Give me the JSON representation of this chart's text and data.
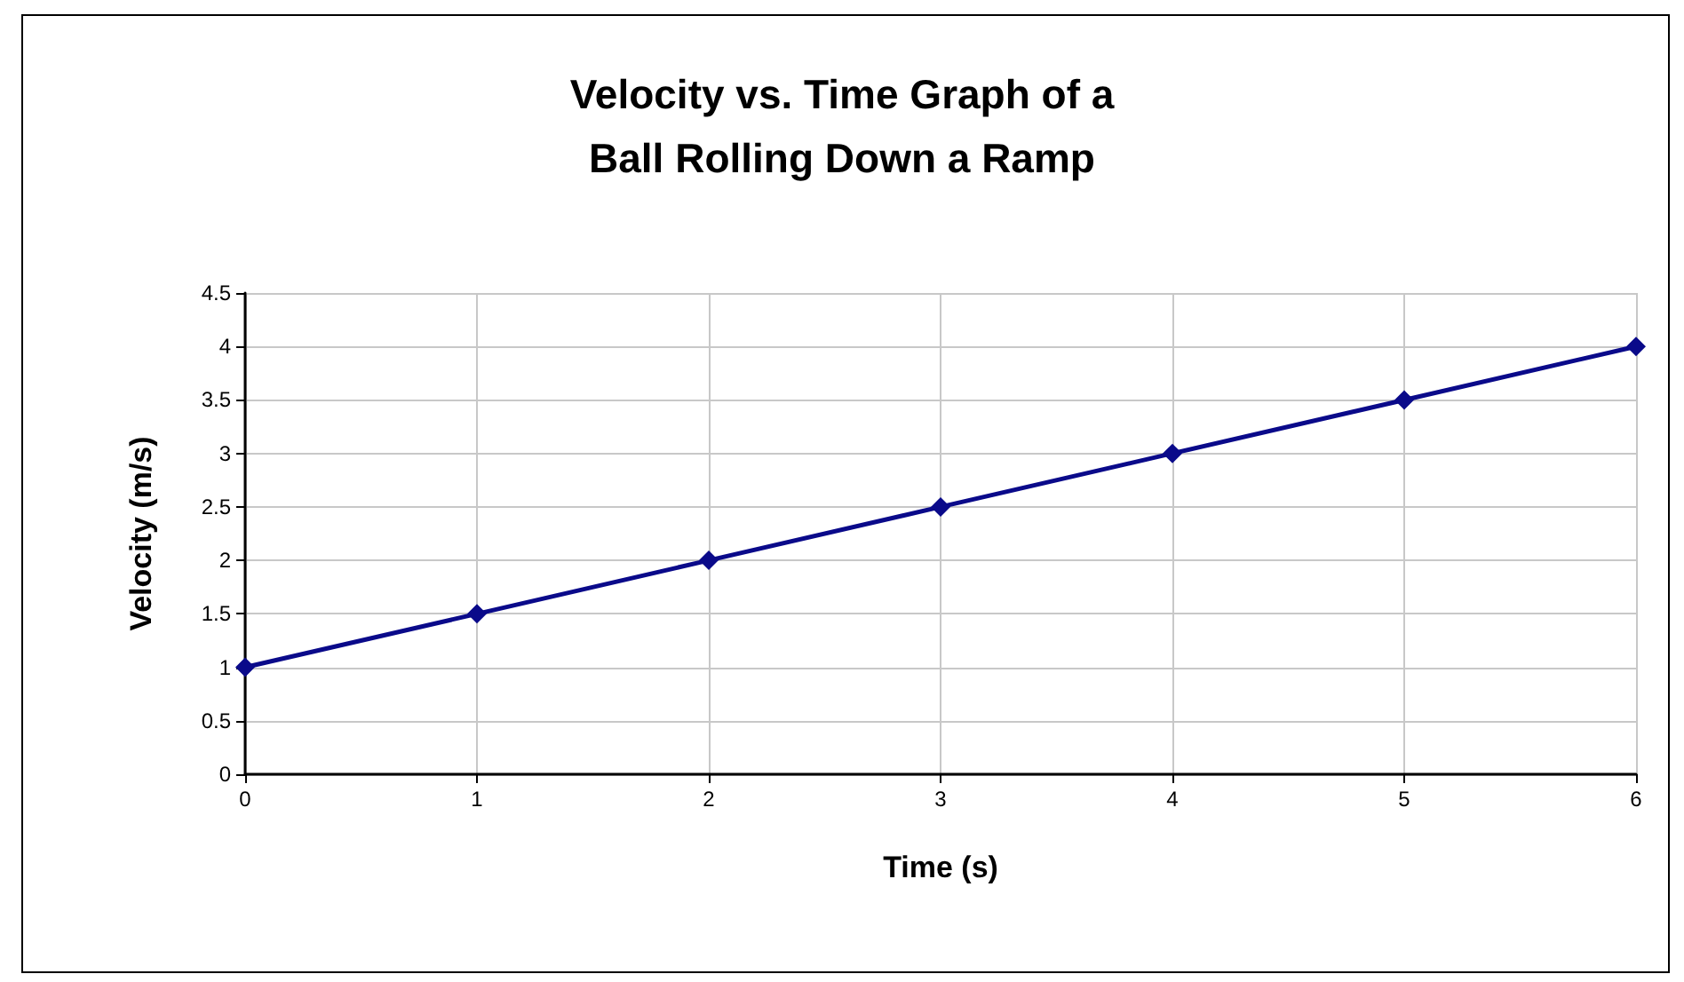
{
  "chart_data": {
    "type": "line",
    "title": "Velocity vs. Time Graph of a\nBall Rolling Down a Ramp",
    "xlabel": "Time (s)",
    "ylabel": "Velocity (m/s)",
    "x": [
      0,
      1,
      2,
      3,
      4,
      5,
      6
    ],
    "series": [
      {
        "color": "#0a0a8a",
        "values": [
          1,
          1.5,
          2,
          2.5,
          3,
          3.5,
          4
        ]
      }
    ],
    "xlim": [
      0,
      6
    ],
    "xticks": [
      0,
      1,
      2,
      3,
      4,
      5,
      6
    ],
    "ylim": [
      0,
      4.5
    ],
    "yticks": [
      0,
      0.5,
      1,
      1.5,
      2,
      2.5,
      3,
      3.5,
      4,
      4.5
    ],
    "grid": true,
    "marker": "diamond",
    "line_style": "solid"
  }
}
